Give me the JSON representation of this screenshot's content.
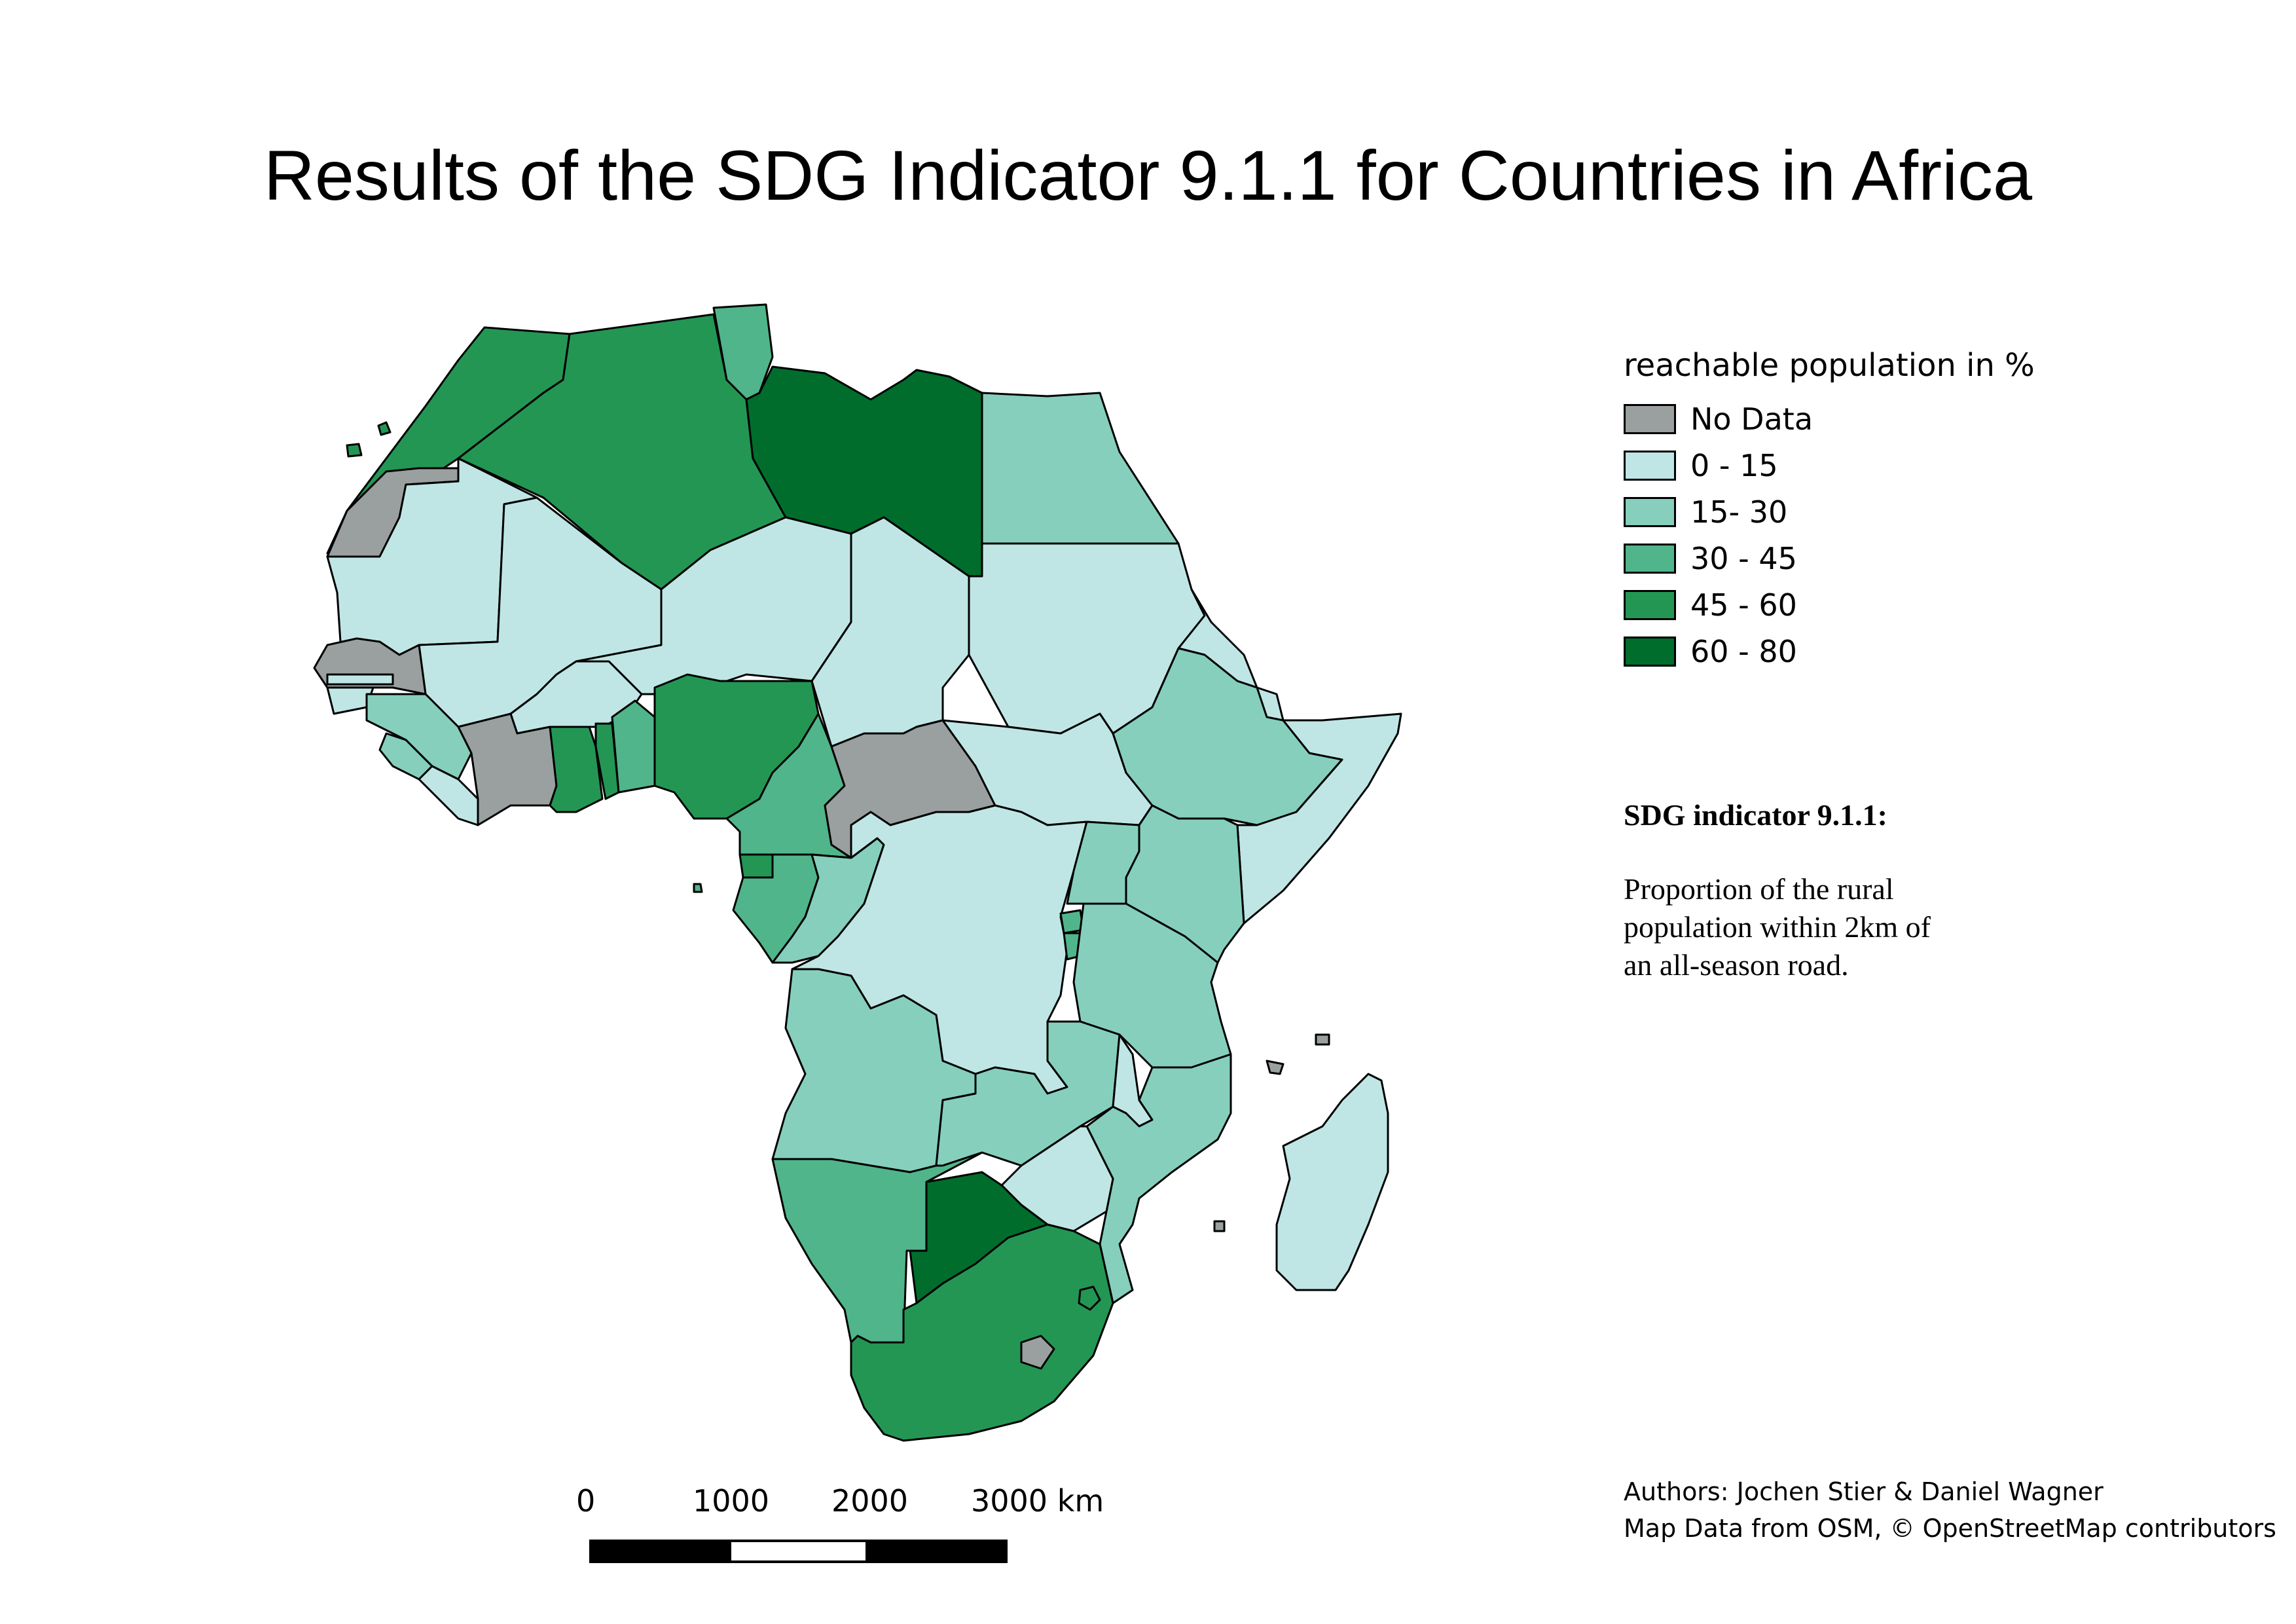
{
  "title": "Results of the SDG Indicator 9.1.1 for Countries in Africa",
  "legend": {
    "title": "reachable population in %",
    "classes": [
      {
        "label": "No Data",
        "color": "#9aa0a0"
      },
      {
        "label": "0 - 15",
        "color": "#bfe6e5"
      },
      {
        "label": "15- 30",
        "color": "#86cfbd"
      },
      {
        "label": "30 - 45",
        "color": "#50b58a"
      },
      {
        "label": "45 - 60",
        "color": "#239654"
      },
      {
        "label": "60 - 80",
        "color": "#006d2c"
      }
    ]
  },
  "description": {
    "heading": "SDG indicator 9.1.1:",
    "lines": [
      "Proportion of the rural",
      "population within 2km of",
      "an all-season road."
    ]
  },
  "scale_bar": {
    "labels": [
      "0",
      "1000",
      "2000",
      "3000 km"
    ]
  },
  "credits": {
    "authors": "Authors: Jochen Stier & Daniel Wagner",
    "source": "Map Data from OSM, © OpenStreetMap contributors"
  },
  "countries": [
    {
      "name": "Morocco",
      "class": "45 - 60"
    },
    {
      "name": "Western Sahara",
      "class": "No Data"
    },
    {
      "name": "Algeria",
      "class": "45 - 60"
    },
    {
      "name": "Tunisia",
      "class": "30 - 45"
    },
    {
      "name": "Libya",
      "class": "60 - 80"
    },
    {
      "name": "Egypt",
      "class": "15- 30"
    },
    {
      "name": "Mauritania",
      "class": "0 - 15"
    },
    {
      "name": "Mali",
      "class": "0 - 15"
    },
    {
      "name": "Niger",
      "class": "0 - 15"
    },
    {
      "name": "Chad",
      "class": "0 - 15"
    },
    {
      "name": "Sudan",
      "class": "0 - 15"
    },
    {
      "name": "Eritrea",
      "class": "0 - 15"
    },
    {
      "name": "Senegal",
      "class": "No Data"
    },
    {
      "name": "Gambia",
      "class": "0 - 15"
    },
    {
      "name": "Guinea-Bissau",
      "class": "0 - 15"
    },
    {
      "name": "Guinea",
      "class": "15- 30"
    },
    {
      "name": "Sierra Leone",
      "class": "15- 30"
    },
    {
      "name": "Liberia",
      "class": "0 - 15"
    },
    {
      "name": "Burkina Faso",
      "class": "0 - 15"
    },
    {
      "name": "Cote d'Ivoire",
      "class": "No Data"
    },
    {
      "name": "Ghana",
      "class": "45 - 60"
    },
    {
      "name": "Togo",
      "class": "45 - 60"
    },
    {
      "name": "Benin",
      "class": "30 - 45"
    },
    {
      "name": "Nigeria",
      "class": "45 - 60"
    },
    {
      "name": "Cameroon",
      "class": "30 - 45"
    },
    {
      "name": "Central African Republic",
      "class": "No Data"
    },
    {
      "name": "South Sudan",
      "class": "0 - 15"
    },
    {
      "name": "Ethiopia",
      "class": "15- 30"
    },
    {
      "name": "Djibouti",
      "class": "0 - 15"
    },
    {
      "name": "Somalia",
      "class": "0 - 15"
    },
    {
      "name": "Equatorial Guinea",
      "class": "45 - 60"
    },
    {
      "name": "Gabon",
      "class": "30 - 45"
    },
    {
      "name": "Republic of the Congo",
      "class": "15- 30"
    },
    {
      "name": "DR Congo",
      "class": "0 - 15"
    },
    {
      "name": "Uganda",
      "class": "15- 30"
    },
    {
      "name": "Kenya",
      "class": "15- 30"
    },
    {
      "name": "Rwanda",
      "class": "30 - 45"
    },
    {
      "name": "Burundi",
      "class": "30 - 45"
    },
    {
      "name": "Tanzania",
      "class": "15- 30"
    },
    {
      "name": "Angola",
      "class": "15- 30"
    },
    {
      "name": "Zambia",
      "class": "15- 30"
    },
    {
      "name": "Malawi",
      "class": "0 - 15"
    },
    {
      "name": "Mozambique",
      "class": "15- 30"
    },
    {
      "name": "Zimbabwe",
      "class": "0 - 15"
    },
    {
      "name": "Namibia",
      "class": "30 - 45"
    },
    {
      "name": "Botswana",
      "class": "60 - 80"
    },
    {
      "name": "South Africa",
      "class": "45 - 60"
    },
    {
      "name": "Lesotho",
      "class": "No Data"
    },
    {
      "name": "Eswatini",
      "class": "45 - 60"
    },
    {
      "name": "Madagascar",
      "class": "0 - 15"
    },
    {
      "name": "Comoros",
      "class": "No Data"
    },
    {
      "name": "Seychelles",
      "class": "No Data"
    },
    {
      "name": "Mauritius",
      "class": "No Data"
    },
    {
      "name": "Cape Verde",
      "class": "45 - 60"
    },
    {
      "name": "Sao Tome and Principe",
      "class": "30 - 45"
    },
    {
      "name": "Canary Islands",
      "class": "45 - 60"
    }
  ]
}
